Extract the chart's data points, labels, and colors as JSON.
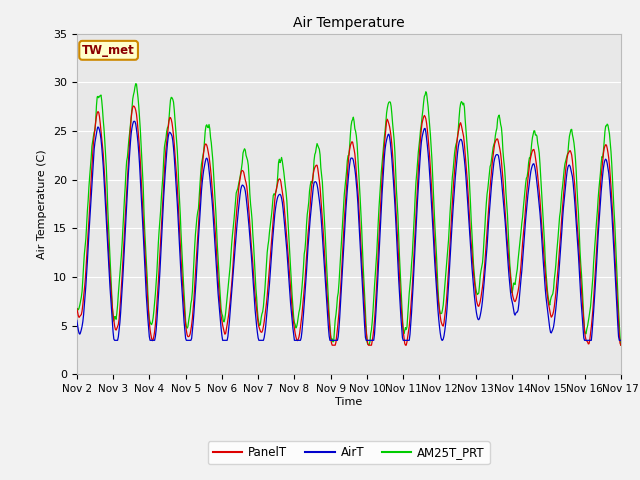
{
  "title": "Air Temperature",
  "ylabel": "Air Temperature (C)",
  "xlabel": "Time",
  "ylim": [
    0,
    35
  ],
  "xlim": [
    0,
    360
  ],
  "annotation": "TW_met",
  "fig_facecolor": "#f2f2f2",
  "ax_facecolor": "#e8e8e8",
  "grid_color": "#ffffff",
  "legend": [
    "PanelT",
    "AirT",
    "AM25T_PRT"
  ],
  "line_colors": [
    "#dd0000",
    "#0000cc",
    "#00cc00"
  ],
  "x_tick_labels": [
    "Nov 2",
    "Nov 3",
    "Nov 4",
    "Nov 5",
    "Nov 6",
    "Nov 7",
    "Nov 8",
    "Nov 9",
    "Nov 10",
    "Nov 11",
    "Nov 12",
    "Nov 13",
    "Nov 14",
    "Nov 15",
    "Nov 16",
    "Nov 17"
  ],
  "x_ticks": [
    0,
    24,
    48,
    72,
    96,
    120,
    144,
    168,
    192,
    216,
    240,
    264,
    288,
    312,
    336,
    360
  ],
  "y_ticks": [
    0,
    5,
    10,
    15,
    20,
    25,
    30,
    35
  ],
  "figsize": [
    6.4,
    4.8
  ],
  "dpi": 100
}
